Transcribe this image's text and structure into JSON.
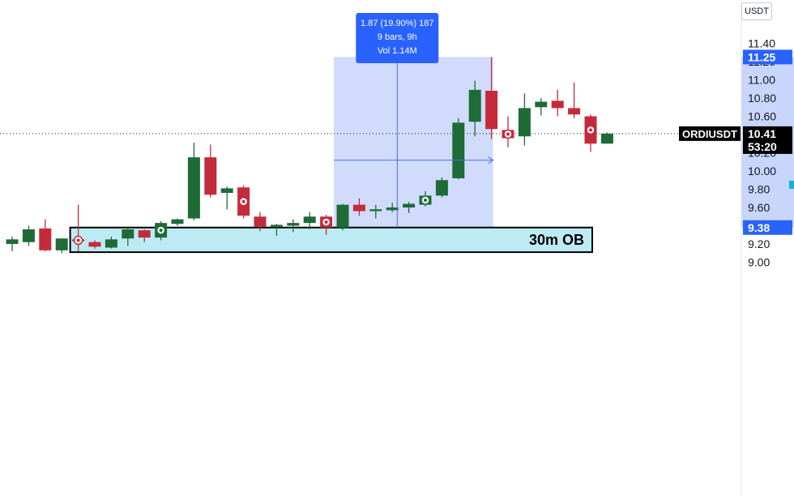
{
  "currency": "USDT",
  "symbol": "ORDIUSDT",
  "colors": {
    "up": "#1e6b37",
    "down": "#c42b3a",
    "measure_fill": "#c9d6fb",
    "measure_line": "#4a6ff0",
    "measure_badge": "#2962ff",
    "ob_fill": "#bdebf3",
    "price_line": "#131722",
    "axis_highlight": "#c9d6fb"
  },
  "price_axis": {
    "ticks": [
      "11.40",
      "11.20",
      "11.00",
      "10.80",
      "10.60",
      "10.40",
      "10.20",
      "10.00",
      "9.80",
      "9.60",
      "9.40",
      "9.20",
      "9.00"
    ],
    "range_high": "11.25",
    "range_low": "9.38",
    "last_price": "10.41",
    "countdown": "53:20"
  },
  "measure_tool": {
    "line1": "1.87 (19.90%) 187",
    "line2": "9 bars, 9h",
    "line3": "Vol 1.14M"
  },
  "order_block": {
    "label": "30m OB"
  },
  "chart_data": {
    "type": "candlestick",
    "ylim": [
      9.0,
      11.5
    ],
    "candles": [
      {
        "o": 9.2,
        "h": 9.28,
        "l": 9.12,
        "c": 9.25
      },
      {
        "o": 9.22,
        "h": 9.4,
        "l": 9.18,
        "c": 9.36
      },
      {
        "o": 9.37,
        "h": 9.47,
        "l": 9.12,
        "c": 9.13
      },
      {
        "o": 9.13,
        "h": 9.25,
        "l": 9.1,
        "c": 9.26
      },
      {
        "o": 9.25,
        "h": 9.63,
        "l": 9.12,
        "c": 9.23
      },
      {
        "o": 9.22,
        "h": 9.24,
        "l": 9.15,
        "c": 9.17
      },
      {
        "o": 9.16,
        "h": 9.28,
        "l": 9.15,
        "c": 9.25
      },
      {
        "o": 9.26,
        "h": 9.37,
        "l": 9.18,
        "c": 9.36
      },
      {
        "o": 9.35,
        "h": 9.36,
        "l": 9.22,
        "c": 9.27
      },
      {
        "o": 9.27,
        "h": 9.45,
        "l": 9.24,
        "c": 9.43
      },
      {
        "o": 9.42,
        "h": 9.48,
        "l": 9.4,
        "c": 9.47
      },
      {
        "o": 9.48,
        "h": 10.31,
        "l": 9.46,
        "c": 10.15
      },
      {
        "o": 10.15,
        "h": 10.29,
        "l": 9.71,
        "c": 9.74
      },
      {
        "o": 9.76,
        "h": 9.83,
        "l": 9.58,
        "c": 9.81
      },
      {
        "o": 9.82,
        "h": 9.84,
        "l": 9.48,
        "c": 9.51
      },
      {
        "o": 9.5,
        "h": 9.55,
        "l": 9.34,
        "c": 9.39
      },
      {
        "o": 9.39,
        "h": 9.42,
        "l": 9.29,
        "c": 9.41
      },
      {
        "o": 9.4,
        "h": 9.47,
        "l": 9.33,
        "c": 9.43
      },
      {
        "o": 9.43,
        "h": 9.55,
        "l": 9.36,
        "c": 9.5
      },
      {
        "o": 9.5,
        "h": 9.52,
        "l": 9.3,
        "c": 9.38
      },
      {
        "o": 9.38,
        "h": 9.64,
        "l": 9.35,
        "c": 9.63
      },
      {
        "o": 9.63,
        "h": 9.7,
        "l": 9.51,
        "c": 9.56
      },
      {
        "o": 9.56,
        "h": 9.63,
        "l": 9.48,
        "c": 9.58
      },
      {
        "o": 9.57,
        "h": 9.65,
        "l": 9.55,
        "c": 9.6
      },
      {
        "o": 9.6,
        "h": 9.66,
        "l": 9.54,
        "c": 9.64
      },
      {
        "o": 9.63,
        "h": 9.78,
        "l": 9.61,
        "c": 9.73
      },
      {
        "o": 9.73,
        "h": 9.93,
        "l": 9.71,
        "c": 9.9
      },
      {
        "o": 9.92,
        "h": 10.58,
        "l": 9.91,
        "c": 10.53
      },
      {
        "o": 10.54,
        "h": 10.99,
        "l": 10.38,
        "c": 10.89
      },
      {
        "o": 10.88,
        "h": 11.25,
        "l": 10.35,
        "c": 10.46
      },
      {
        "o": 10.45,
        "h": 10.6,
        "l": 10.26,
        "c": 10.36
      },
      {
        "o": 10.38,
        "h": 10.85,
        "l": 10.28,
        "c": 10.69
      },
      {
        "o": 10.7,
        "h": 10.8,
        "l": 10.61,
        "c": 10.76
      },
      {
        "o": 10.77,
        "h": 10.89,
        "l": 10.6,
        "c": 10.69
      },
      {
        "o": 10.69,
        "h": 10.97,
        "l": 10.58,
        "c": 10.62
      },
      {
        "o": 10.6,
        "h": 10.62,
        "l": 10.21,
        "c": 10.3
      },
      {
        "o": 10.3,
        "h": 10.42,
        "l": 10.3,
        "c": 10.41
      }
    ],
    "markers": [
      4,
      9,
      14,
      19,
      25,
      30,
      35
    ],
    "measure": {
      "from_bar": 20,
      "to_bar": 29,
      "low": 9.38,
      "high": 11.25
    },
    "order_block": {
      "from_bar": 4,
      "to_bar": 35,
      "low": 9.11,
      "high": 9.38
    }
  }
}
